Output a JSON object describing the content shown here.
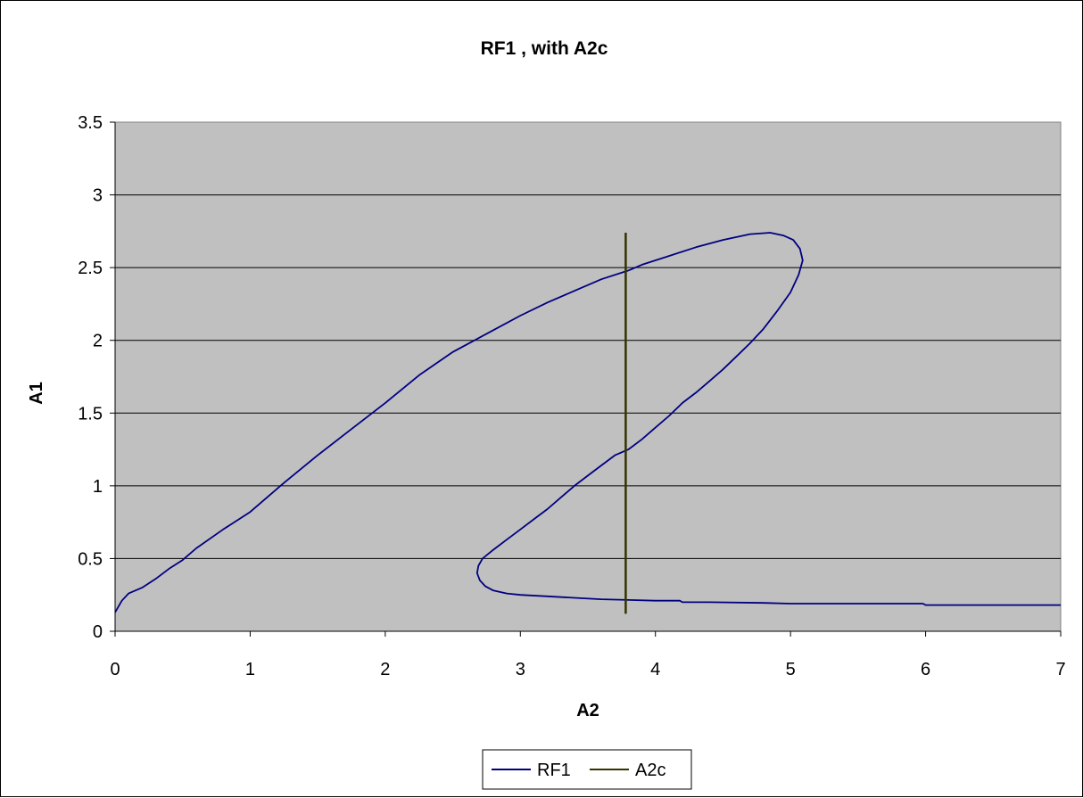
{
  "colors": {
    "plot_background": "#c0c0c0",
    "gridline": "#000000",
    "rf1": "#000080",
    "a2c": "#333300"
  },
  "chart_data": {
    "type": "line",
    "title": "RF1 , with A2c",
    "xlabel": "A2",
    "ylabel": "A1",
    "xlim": [
      0,
      7
    ],
    "ylim": [
      0,
      3.5
    ],
    "xticks": [
      0,
      1,
      2,
      3,
      4,
      5,
      6,
      7
    ],
    "yticks": [
      0,
      0.5,
      1,
      1.5,
      2,
      2.5,
      3,
      3.5
    ],
    "x_tick_labels": [
      "0",
      "1",
      "2",
      "3",
      "4",
      "5",
      "6",
      "7"
    ],
    "y_tick_labels": [
      "0",
      "0.5",
      "1",
      "1.5",
      "2",
      "2.5",
      "3",
      "3.5"
    ],
    "grid": "horizontal major gridlines",
    "legend_position": "bottom",
    "series": [
      {
        "name": "RF1",
        "color": "#000080",
        "points": [
          [
            7.0,
            0.18
          ],
          [
            6.5,
            0.18
          ],
          [
            6.0,
            0.18
          ],
          [
            5.98,
            0.19
          ],
          [
            5.5,
            0.19
          ],
          [
            5.0,
            0.19
          ],
          [
            4.8,
            0.195
          ],
          [
            4.4,
            0.2
          ],
          [
            4.2,
            0.2
          ],
          [
            4.18,
            0.21
          ],
          [
            4.0,
            0.21
          ],
          [
            3.8,
            0.215
          ],
          [
            3.6,
            0.22
          ],
          [
            3.4,
            0.23
          ],
          [
            3.2,
            0.24
          ],
          [
            3.0,
            0.25
          ],
          [
            2.9,
            0.26
          ],
          [
            2.8,
            0.28
          ],
          [
            2.74,
            0.31
          ],
          [
            2.7,
            0.35
          ],
          [
            2.68,
            0.4
          ],
          [
            2.69,
            0.45
          ],
          [
            2.72,
            0.5
          ],
          [
            2.8,
            0.56
          ],
          [
            2.9,
            0.63
          ],
          [
            3.0,
            0.7
          ],
          [
            3.1,
            0.77
          ],
          [
            3.2,
            0.84
          ],
          [
            3.3,
            0.92
          ],
          [
            3.4,
            1.0
          ],
          [
            3.5,
            1.07
          ],
          [
            3.6,
            1.14
          ],
          [
            3.7,
            1.21
          ],
          [
            3.8,
            1.25
          ],
          [
            3.9,
            1.32
          ],
          [
            4.0,
            1.4
          ],
          [
            4.1,
            1.48
          ],
          [
            4.2,
            1.57
          ],
          [
            4.3,
            1.64
          ],
          [
            4.4,
            1.72
          ],
          [
            4.5,
            1.8
          ],
          [
            4.6,
            1.89
          ],
          [
            4.7,
            1.98
          ],
          [
            4.8,
            2.08
          ],
          [
            4.9,
            2.2
          ],
          [
            5.0,
            2.33
          ],
          [
            5.06,
            2.45
          ],
          [
            5.09,
            2.55
          ],
          [
            5.07,
            2.63
          ],
          [
            5.02,
            2.69
          ],
          [
            4.95,
            2.72
          ],
          [
            4.85,
            2.74
          ],
          [
            4.7,
            2.73
          ],
          [
            4.5,
            2.69
          ],
          [
            4.3,
            2.64
          ],
          [
            4.1,
            2.58
          ],
          [
            3.9,
            2.52
          ],
          [
            3.8,
            2.48
          ],
          [
            3.6,
            2.42
          ],
          [
            3.4,
            2.34
          ],
          [
            3.2,
            2.26
          ],
          [
            3.0,
            2.17
          ],
          [
            2.8,
            2.07
          ],
          [
            2.5,
            1.92
          ],
          [
            2.25,
            1.76
          ],
          [
            2.0,
            1.57
          ],
          [
            1.75,
            1.39
          ],
          [
            1.5,
            1.21
          ],
          [
            1.25,
            1.02
          ],
          [
            1.0,
            0.82
          ],
          [
            0.8,
            0.7
          ],
          [
            0.6,
            0.57
          ],
          [
            0.5,
            0.49
          ],
          [
            0.4,
            0.43
          ],
          [
            0.3,
            0.36
          ],
          [
            0.2,
            0.3
          ],
          [
            0.1,
            0.26
          ],
          [
            0.05,
            0.21
          ],
          [
            0.0,
            0.13
          ]
        ]
      },
      {
        "name": "A2c",
        "color": "#333300",
        "points": [
          [
            3.78,
            0.12
          ],
          [
            3.78,
            2.74
          ]
        ]
      }
    ]
  }
}
